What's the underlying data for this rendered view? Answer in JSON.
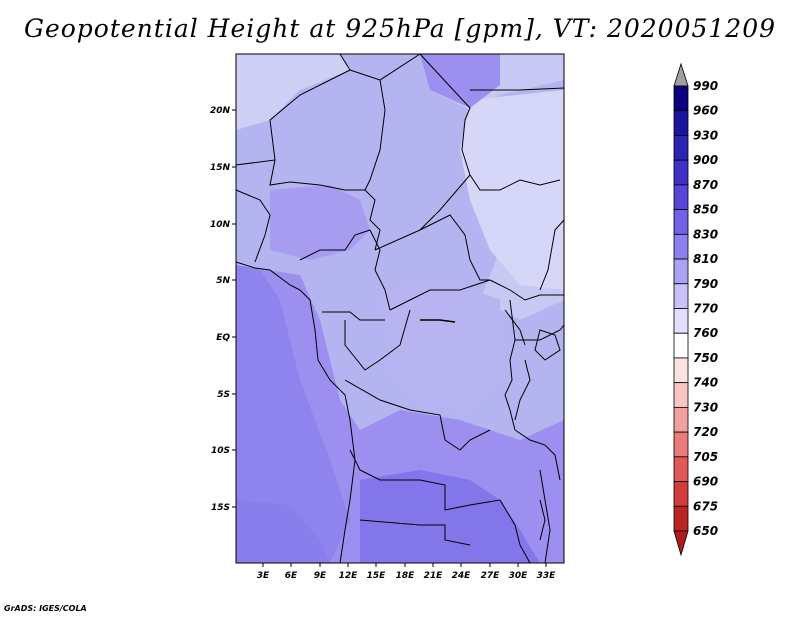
{
  "title": "Geopotential Height at 925hPa [gpm], VT: 2020051209",
  "credit": "GrADS: IGES/COLA",
  "map": {
    "lat_labels": [
      "20N",
      "15N",
      "10N",
      "5N",
      "EQ",
      "5S",
      "10S",
      "15S"
    ],
    "lon_labels": [
      "3E",
      "6E",
      "9E",
      "12E",
      "15E",
      "18E",
      "21E",
      "24E",
      "27E",
      "30E",
      "33E"
    ],
    "colors": {
      "land_light": "#d6d6f5",
      "land_mid": "#b4b4f0",
      "land_dark": "#9c8ff0",
      "land_darkest": "#8376ea",
      "border": "#000000"
    }
  },
  "colorbar": {
    "labels": [
      "990",
      "960",
      "930",
      "900",
      "870",
      "850",
      "830",
      "810",
      "790",
      "770",
      "760",
      "750",
      "740",
      "730",
      "720",
      "705",
      "690",
      "675",
      "650"
    ],
    "colors": [
      "#0a0080",
      "#1c149c",
      "#2e24b4",
      "#4030c8",
      "#5846d8",
      "#7262e6",
      "#8c80ee",
      "#aaa2f4",
      "#c8c2f8",
      "#e2e0fc",
      "#ffffff",
      "#fce2e2",
      "#f8c4c4",
      "#f2a0a0",
      "#ea7c7c",
      "#e05858",
      "#d23c3c",
      "#bc2424",
      "#a01010"
    ],
    "top_arrow_color": "#a0a0a0",
    "bottom_arrow_color": "#b01c1c"
  }
}
